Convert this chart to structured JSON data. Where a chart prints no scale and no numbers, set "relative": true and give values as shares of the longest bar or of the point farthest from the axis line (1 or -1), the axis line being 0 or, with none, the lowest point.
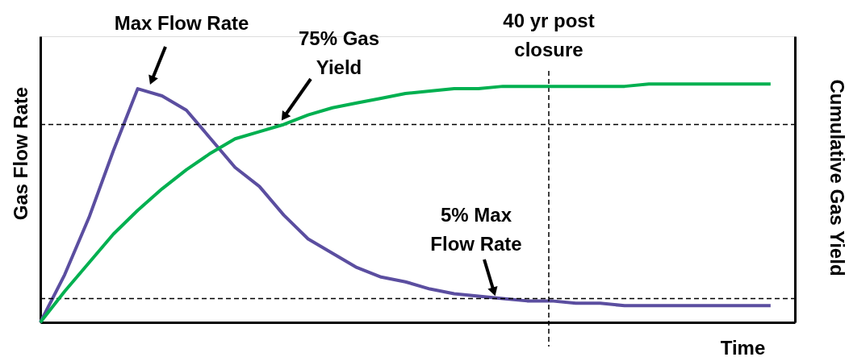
{
  "chart_data": {
    "type": "line",
    "relative": true,
    "xlabel": "Time",
    "ylabel": "Gas Flow Rate",
    "y2label": "Cumulative Gas Yield",
    "tick_labels": false,
    "grid": false,
    "marker": "none",
    "line_style": "solid",
    "categories": [
      null,
      null,
      null,
      null,
      null,
      null,
      null,
      null,
      null,
      null,
      null,
      null,
      null,
      null,
      null,
      null,
      null,
      null,
      null,
      null,
      null,
      null,
      null,
      null,
      null,
      null,
      null,
      null,
      null,
      null,
      null
    ],
    "series": [
      {
        "color": "#5b4ea0",
        "values": [
          0,
          0.2,
          0.44,
          0.72,
          0.98,
          0.95,
          0.89,
          0.77,
          0.65,
          0.57,
          0.45,
          0.35,
          0.29,
          0.23,
          0.19,
          0.17,
          0.14,
          0.12,
          0.11,
          0.1,
          0.09,
          0.09,
          0.08,
          0.08,
          0.07,
          0.07,
          0.07,
          0.07,
          0.07,
          0.07,
          0.07
        ]
      },
      {
        "color": "#00b050",
        "values": [
          0,
          0.13,
          0.25,
          0.37,
          0.47,
          0.56,
          0.64,
          0.71,
          0.77,
          0.8,
          0.83,
          0.87,
          0.9,
          0.92,
          0.94,
          0.96,
          0.97,
          0.98,
          0.98,
          0.99,
          0.99,
          0.99,
          0.99,
          0.99,
          0.99,
          1.0,
          1.0,
          1.0,
          1.0,
          1.0,
          1.0
        ]
      }
    ],
    "ref_lines": [
      {
        "axis": "y",
        "value": 0.1,
        "line_style": "dashed",
        "color": "#000000"
      },
      {
        "axis": "y",
        "value": 0.83,
        "line_style": "dashed",
        "color": "#000000"
      }
    ],
    "annotations": [
      "Max Flow Rate",
      "75% Gas\nYield",
      "5% Max\nFlow Rate",
      "40 yr post\nclosure"
    ]
  }
}
